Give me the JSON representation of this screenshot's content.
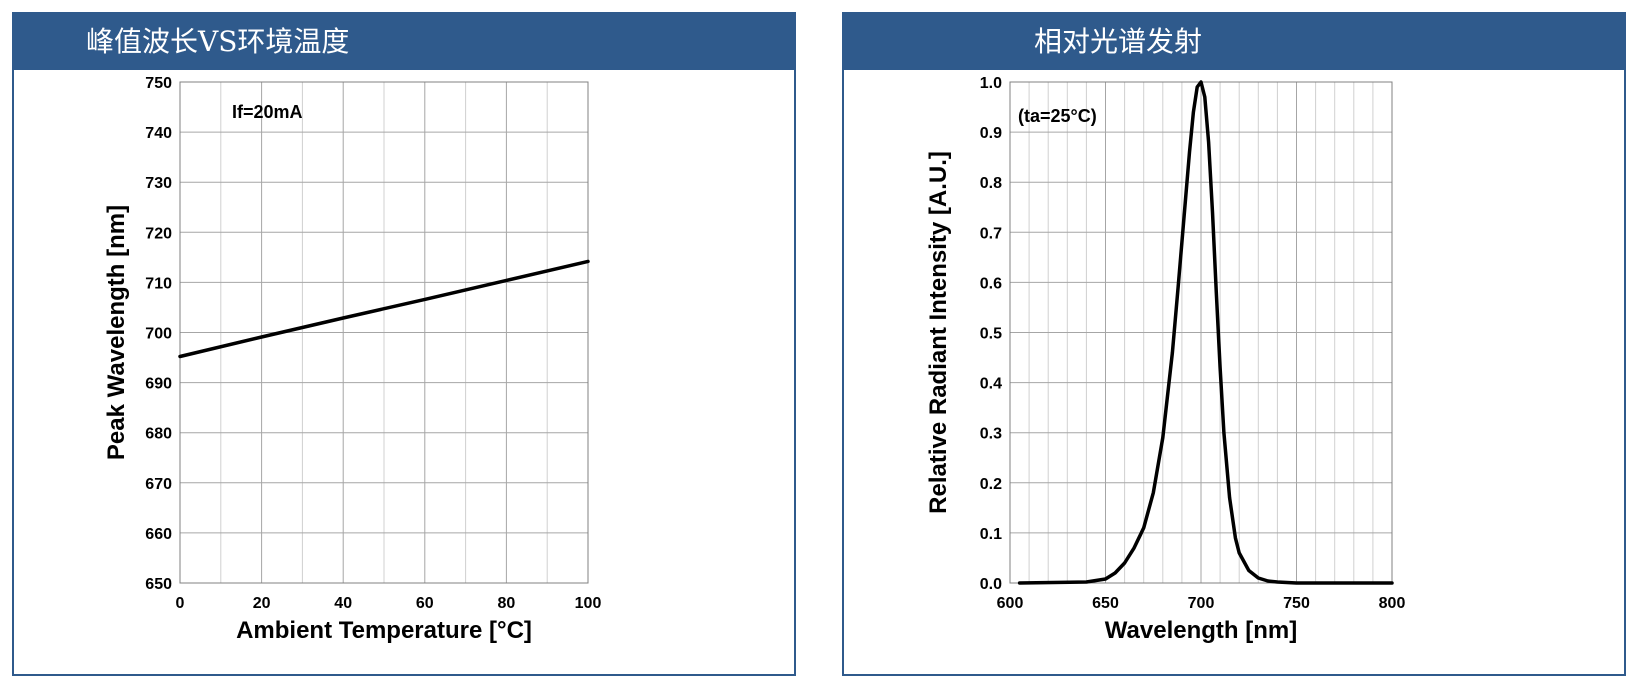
{
  "panels": {
    "left": {
      "title": "峰值波长VS环境温度"
    },
    "right": {
      "title": "相对光谱发射"
    }
  },
  "colors": {
    "header": "#2f5a8c",
    "grid": "#a6a6a6",
    "line": "#000000"
  },
  "chart_data": [
    {
      "type": "line",
      "title": "峰值波长VS环境温度",
      "xlabel": "Ambient Temperature [°C]",
      "ylabel": "Peak Wavelength [nm]",
      "annotation": "If=20mA",
      "xlim": [
        0,
        100
      ],
      "ylim": [
        650,
        750
      ],
      "xticks": [
        0,
        20,
        40,
        60,
        80,
        100
      ],
      "yticks": [
        650,
        660,
        670,
        680,
        690,
        700,
        710,
        720,
        730,
        740,
        750
      ],
      "xminor": [
        10,
        30,
        50,
        70,
        90
      ],
      "grid": true,
      "series": [
        {
          "x": [
            0,
            20,
            40,
            60,
            80,
            100
          ],
          "y": [
            695.2,
            699.1,
            702.9,
            706.6,
            710.4,
            714.2
          ]
        }
      ]
    },
    {
      "type": "line",
      "title": "相对光谱发射",
      "xlabel": "Wavelength [nm]",
      "ylabel": "Relative Radiant Intensity [A.U.]",
      "annotation": "(ta=25°C)",
      "xlim": [
        600,
        800
      ],
      "ylim": [
        0,
        1.0
      ],
      "xticks": [
        600,
        650,
        700,
        750,
        800
      ],
      "yticks": [
        0.0,
        0.1,
        0.2,
        0.3,
        0.4,
        0.5,
        0.6,
        0.7,
        0.8,
        0.9,
        1.0
      ],
      "ytick_labels": [
        "0.0",
        "0.1",
        "0.2",
        "0.3",
        "0.4",
        "0.5",
        "0.6",
        "0.7",
        "0.8",
        "0.9",
        "1.0"
      ],
      "xminor": [
        610,
        620,
        630,
        640,
        660,
        670,
        680,
        690,
        710,
        720,
        730,
        740,
        760,
        770,
        780,
        790
      ],
      "grid": true,
      "series": [
        {
          "x": [
            605,
            640,
            650,
            655,
            660,
            665,
            670,
            675,
            680,
            685,
            688,
            690,
            692,
            694,
            696,
            698,
            700,
            702,
            704,
            706,
            708,
            710,
            712,
            715,
            718,
            720,
            725,
            730,
            735,
            740,
            750,
            800
          ],
          "y": [
            0,
            0.002,
            0.008,
            0.02,
            0.04,
            0.07,
            0.11,
            0.18,
            0.29,
            0.46,
            0.59,
            0.68,
            0.77,
            0.86,
            0.94,
            0.99,
            1.0,
            0.97,
            0.88,
            0.74,
            0.58,
            0.43,
            0.3,
            0.17,
            0.09,
            0.06,
            0.025,
            0.01,
            0.004,
            0.002,
            0,
            0
          ]
        }
      ]
    }
  ]
}
